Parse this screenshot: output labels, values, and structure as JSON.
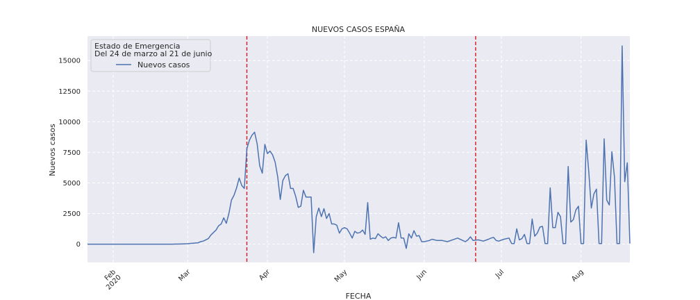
{
  "chart_data": {
    "type": "line",
    "title": "NUEVOS CASOS ESPAÑA",
    "xlabel": "FECHA",
    "ylabel": "Nuevos casos",
    "x_range": [
      "2020-01-22",
      "2020-08-20"
    ],
    "ylim": [
      -1500,
      17000
    ],
    "grid": true,
    "legend_placement": "top-left",
    "legend_title": "Estado de Emergencia\nDel 24 de marzo al 21 de junio",
    "y_ticks": [
      0,
      2500,
      5000,
      7500,
      10000,
      12500,
      15000
    ],
    "y_tick_labels": [
      "0",
      "2500",
      "5000",
      "7500",
      "10000",
      "12500",
      "15000"
    ],
    "x_ticks": [
      {
        "date": "2020-02-01",
        "label": "Feb\n2020"
      },
      {
        "date": "2020-03-01",
        "label": "Mar"
      },
      {
        "date": "2020-04-01",
        "label": "Apr"
      },
      {
        "date": "2020-05-01",
        "label": "May"
      },
      {
        "date": "2020-06-01",
        "label": "Jun"
      },
      {
        "date": "2020-07-01",
        "label": "Jul"
      },
      {
        "date": "2020-08-01",
        "label": "Aug"
      }
    ],
    "vlines": [
      {
        "date": "2020-03-24",
        "color": "#d62728"
      },
      {
        "date": "2020-06-21",
        "color": "#d62728"
      }
    ],
    "series": [
      {
        "name": "Nuevos casos",
        "color": "#4c72b0",
        "points": [
          [
            "2020-01-22",
            0
          ],
          [
            "2020-02-24",
            0
          ],
          [
            "2020-02-28",
            20
          ],
          [
            "2020-03-01",
            40
          ],
          [
            "2020-03-03",
            70
          ],
          [
            "2020-03-05",
            110
          ],
          [
            "2020-03-06",
            200
          ],
          [
            "2020-03-07",
            250
          ],
          [
            "2020-03-08",
            350
          ],
          [
            "2020-03-09",
            450
          ],
          [
            "2020-03-10",
            750
          ],
          [
            "2020-03-11",
            950
          ],
          [
            "2020-03-12",
            1150
          ],
          [
            "2020-03-13",
            1500
          ],
          [
            "2020-03-14",
            1650
          ],
          [
            "2020-03-15",
            2150
          ],
          [
            "2020-03-16",
            1700
          ],
          [
            "2020-03-17",
            2500
          ],
          [
            "2020-03-18",
            3600
          ],
          [
            "2020-03-19",
            4000
          ],
          [
            "2020-03-20",
            4600
          ],
          [
            "2020-03-21",
            5400
          ],
          [
            "2020-03-22",
            4800
          ],
          [
            "2020-03-23",
            4550
          ],
          [
            "2020-03-24",
            7800
          ],
          [
            "2020-03-25",
            8500
          ],
          [
            "2020-03-26",
            8900
          ],
          [
            "2020-03-27",
            9150
          ],
          [
            "2020-03-28",
            8200
          ],
          [
            "2020-03-29",
            6400
          ],
          [
            "2020-03-30",
            5800
          ],
          [
            "2020-03-31",
            8150
          ],
          [
            "2020-04-01",
            7400
          ],
          [
            "2020-04-02",
            7600
          ],
          [
            "2020-04-03",
            7300
          ],
          [
            "2020-04-04",
            6700
          ],
          [
            "2020-04-05",
            5500
          ],
          [
            "2020-04-06",
            3650
          ],
          [
            "2020-04-07",
            5200
          ],
          [
            "2020-04-08",
            5600
          ],
          [
            "2020-04-09",
            5750
          ],
          [
            "2020-04-10",
            4550
          ],
          [
            "2020-04-11",
            4550
          ],
          [
            "2020-04-12",
            3900
          ],
          [
            "2020-04-13",
            3000
          ],
          [
            "2020-04-14",
            3100
          ],
          [
            "2020-04-15",
            4400
          ],
          [
            "2020-04-16",
            3850
          ],
          [
            "2020-04-17",
            3850
          ],
          [
            "2020-04-18",
            3850
          ],
          [
            "2020-04-19",
            -700
          ],
          [
            "2020-04-20",
            2250
          ],
          [
            "2020-04-21",
            2950
          ],
          [
            "2020-04-22",
            2250
          ],
          [
            "2020-04-23",
            2900
          ],
          [
            "2020-04-24",
            2100
          ],
          [
            "2020-04-25",
            2500
          ],
          [
            "2020-04-26",
            1650
          ],
          [
            "2020-04-27",
            1650
          ],
          [
            "2020-04-28",
            1550
          ],
          [
            "2020-04-29",
            900
          ],
          [
            "2020-04-30",
            1250
          ],
          [
            "2020-05-01",
            1350
          ],
          [
            "2020-05-02",
            1250
          ],
          [
            "2020-05-03",
            900
          ],
          [
            "2020-05-04",
            500
          ],
          [
            "2020-05-05",
            1050
          ],
          [
            "2020-05-06",
            900
          ],
          [
            "2020-05-07",
            950
          ],
          [
            "2020-05-08",
            1150
          ],
          [
            "2020-05-09",
            800
          ],
          [
            "2020-05-10",
            3400
          ],
          [
            "2020-05-11",
            400
          ],
          [
            "2020-05-12",
            500
          ],
          [
            "2020-05-13",
            450
          ],
          [
            "2020-05-14",
            850
          ],
          [
            "2020-05-15",
            650
          ],
          [
            "2020-05-16",
            500
          ],
          [
            "2020-05-17",
            600
          ],
          [
            "2020-05-18",
            300
          ],
          [
            "2020-05-19",
            500
          ],
          [
            "2020-05-20",
            550
          ],
          [
            "2020-05-21",
            500
          ],
          [
            "2020-05-22",
            1750
          ],
          [
            "2020-05-23",
            500
          ],
          [
            "2020-05-24",
            500
          ],
          [
            "2020-05-25",
            -350
          ],
          [
            "2020-05-26",
            850
          ],
          [
            "2020-05-27",
            500
          ],
          [
            "2020-05-28",
            1100
          ],
          [
            "2020-05-29",
            650
          ],
          [
            "2020-05-30",
            700
          ],
          [
            "2020-05-31",
            200
          ],
          [
            "2020-06-01",
            200
          ],
          [
            "2020-06-03",
            300
          ],
          [
            "2020-06-04",
            400
          ],
          [
            "2020-06-06",
            300
          ],
          [
            "2020-06-08",
            300
          ],
          [
            "2020-06-10",
            200
          ],
          [
            "2020-06-12",
            350
          ],
          [
            "2020-06-14",
            500
          ],
          [
            "2020-06-16",
            300
          ],
          [
            "2020-06-17",
            200
          ],
          [
            "2020-06-18",
            350
          ],
          [
            "2020-06-19",
            600
          ],
          [
            "2020-06-20",
            300
          ],
          [
            "2020-06-22",
            350
          ],
          [
            "2020-06-24",
            250
          ],
          [
            "2020-06-26",
            400
          ],
          [
            "2020-06-27",
            500
          ],
          [
            "2020-06-28",
            550
          ],
          [
            "2020-06-29",
            300
          ],
          [
            "2020-06-30",
            250
          ],
          [
            "2020-07-02",
            400
          ],
          [
            "2020-07-04",
            500
          ],
          [
            "2020-07-05",
            50
          ],
          [
            "2020-07-06",
            50
          ],
          [
            "2020-07-07",
            1250
          ],
          [
            "2020-07-08",
            350
          ],
          [
            "2020-07-09",
            450
          ],
          [
            "2020-07-10",
            800
          ],
          [
            "2020-07-11",
            50
          ],
          [
            "2020-07-12",
            50
          ],
          [
            "2020-07-13",
            2050
          ],
          [
            "2020-07-14",
            650
          ],
          [
            "2020-07-15",
            900
          ],
          [
            "2020-07-16",
            1400
          ],
          [
            "2020-07-17",
            1450
          ],
          [
            "2020-07-18",
            50
          ],
          [
            "2020-07-19",
            50
          ],
          [
            "2020-07-20",
            4600
          ],
          [
            "2020-07-21",
            1350
          ],
          [
            "2020-07-22",
            1350
          ],
          [
            "2020-07-23",
            2600
          ],
          [
            "2020-07-24",
            2250
          ],
          [
            "2020-07-25",
            50
          ],
          [
            "2020-07-26",
            50
          ],
          [
            "2020-07-27",
            6350
          ],
          [
            "2020-07-28",
            1800
          ],
          [
            "2020-07-29",
            2000
          ],
          [
            "2020-07-30",
            2800
          ],
          [
            "2020-07-31",
            3100
          ],
          [
            "2020-08-01",
            50
          ],
          [
            "2020-08-02",
            50
          ],
          [
            "2020-08-03",
            8500
          ],
          [
            "2020-08-04",
            5950
          ],
          [
            "2020-08-05",
            2950
          ],
          [
            "2020-08-06",
            4100
          ],
          [
            "2020-08-07",
            4500
          ],
          [
            "2020-08-08",
            50
          ],
          [
            "2020-08-09",
            50
          ],
          [
            "2020-08-10",
            8600
          ],
          [
            "2020-08-11",
            3600
          ],
          [
            "2020-08-12",
            3200
          ],
          [
            "2020-08-13",
            7550
          ],
          [
            "2020-08-14",
            5500
          ],
          [
            "2020-08-15",
            50
          ],
          [
            "2020-08-16",
            50
          ],
          [
            "2020-08-17",
            16200
          ],
          [
            "2020-08-18",
            5100
          ],
          [
            "2020-08-19",
            6650
          ],
          [
            "2020-08-20",
            50
          ]
        ]
      }
    ]
  }
}
